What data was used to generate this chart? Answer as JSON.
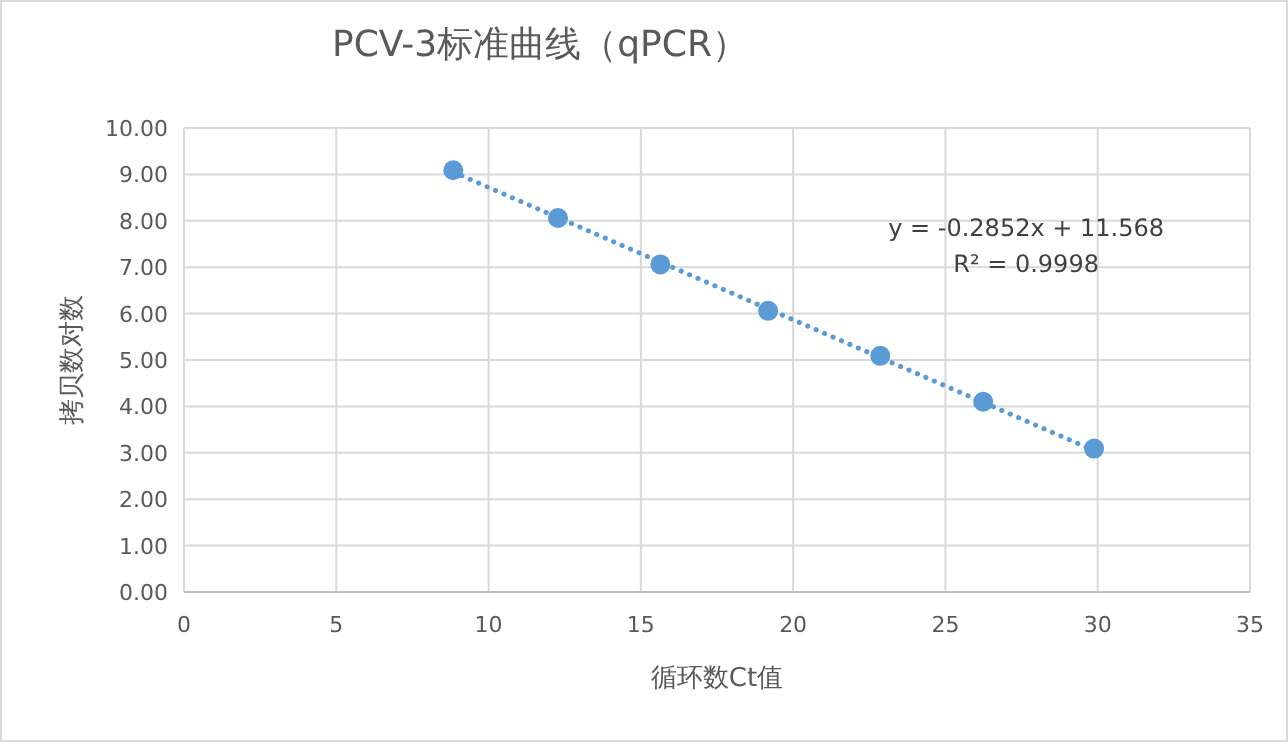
{
  "chart_data": {
    "type": "scatter",
    "title": "PCV-3标准曲线（qPCR）",
    "xlabel": "循环数Ct值",
    "ylabel": "拷贝数对数",
    "annotations": [
      "y = -0.2852x + 11.568",
      "R² = 0.9998"
    ],
    "xlim": [
      0,
      35
    ],
    "xticks": [
      0,
      5,
      10,
      15,
      20,
      25,
      30,
      35
    ],
    "ylim": [
      0,
      10
    ],
    "yticks": [
      {
        "value": 0,
        "label": "0.00"
      },
      {
        "value": 1,
        "label": "1.00"
      },
      {
        "value": 2,
        "label": "2.00"
      },
      {
        "value": 3,
        "label": "3.00"
      },
      {
        "value": 4,
        "label": "4.00"
      },
      {
        "value": 5,
        "label": "5.00"
      },
      {
        "value": 6,
        "label": "6.00"
      },
      {
        "value": 7,
        "label": "7.00"
      },
      {
        "value": 8,
        "label": "8.00"
      },
      {
        "value": 9,
        "label": "9.00"
      },
      {
        "value": 10,
        "label": "10.00"
      }
    ],
    "grid": true,
    "marker": "circle",
    "series": [
      {
        "color": "#5b9bd5",
        "x": [
          8.84,
          12.28,
          15.64,
          19.18,
          22.86,
          26.24,
          29.88
        ],
        "values": [
          9.09,
          8.06,
          7.06,
          6.06,
          5.09,
          4.1,
          3.09
        ]
      },
      {
        "type": "line",
        "color": "#5b9bd5",
        "line_style": "dotted",
        "marker": "none",
        "x": [
          8.84,
          29.88
        ],
        "values": [
          9.05,
          3.05
        ]
      }
    ]
  }
}
